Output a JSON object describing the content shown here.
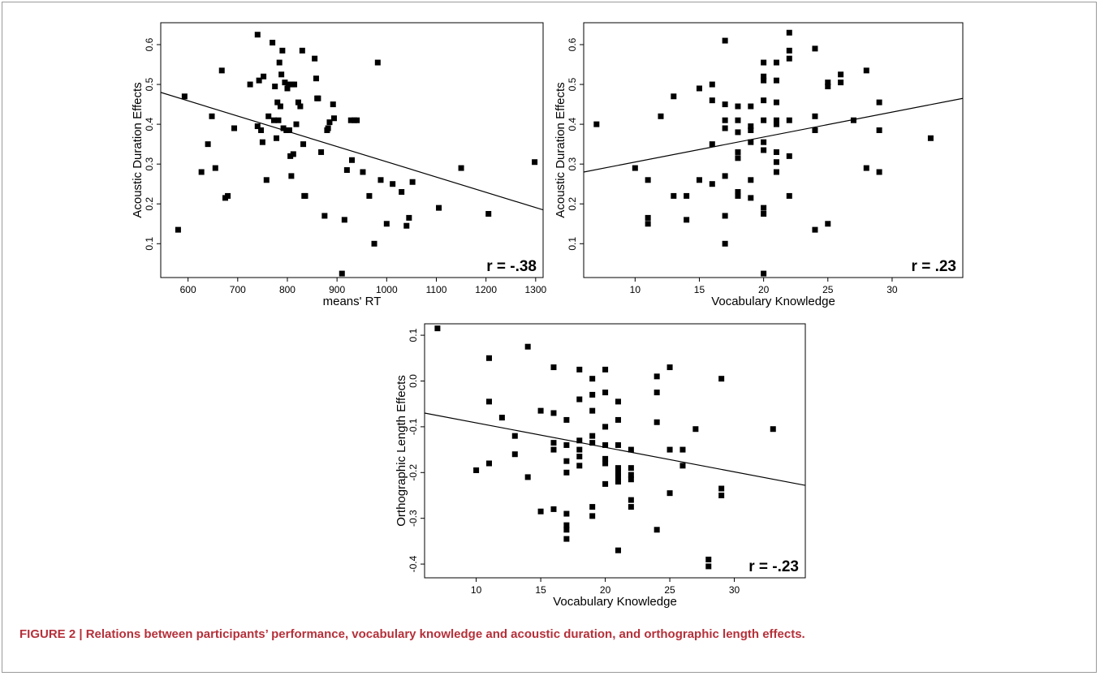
{
  "caption": "FIGURE 2 | Relations between participants’ performance, vocabulary knowledge and acoustic duration, and orthographic length effects.",
  "colors": {
    "caption": "#b5303a",
    "marker": "#000000",
    "axis": "#000000",
    "frame": "#9a9a9a"
  },
  "chart_data": [
    {
      "type": "scatter",
      "xlabel": "means' RT",
      "ylabel": "Acoustic Duration Effects",
      "annotation": "r = -.38",
      "xlim": [
        545,
        1315
      ],
      "ylim": [
        0.015,
        0.655
      ],
      "xticks": [
        600,
        700,
        800,
        900,
        1000,
        1100,
        1200,
        1300
      ],
      "yticks": [
        0.1,
        0.2,
        0.3,
        0.4,
        0.5,
        0.6
      ],
      "ytick_labels": [
        "0.1",
        "0.2",
        "0.3",
        "0.4",
        "0.5",
        "0.6"
      ],
      "fit_line": [
        [
          545,
          0.48
        ],
        [
          1315,
          0.185
        ]
      ],
      "grid": false,
      "points": [
        [
          580,
          0.135
        ],
        [
          593,
          0.47
        ],
        [
          627,
          0.28
        ],
        [
          640,
          0.35
        ],
        [
          648,
          0.42
        ],
        [
          655,
          0.29
        ],
        [
          668,
          0.535
        ],
        [
          675,
          0.215
        ],
        [
          680,
          0.22
        ],
        [
          693,
          0.39
        ],
        [
          725,
          0.5
        ],
        [
          740,
          0.625
        ],
        [
          740,
          0.395
        ],
        [
          743,
          0.51
        ],
        [
          747,
          0.385
        ],
        [
          750,
          0.355
        ],
        [
          752,
          0.52
        ],
        [
          758,
          0.26
        ],
        [
          762,
          0.42
        ],
        [
          770,
          0.605
        ],
        [
          773,
          0.41
        ],
        [
          775,
          0.495
        ],
        [
          778,
          0.365
        ],
        [
          780,
          0.455
        ],
        [
          782,
          0.41
        ],
        [
          784,
          0.555
        ],
        [
          786,
          0.445
        ],
        [
          788,
          0.525
        ],
        [
          790,
          0.585
        ],
        [
          792,
          0.39
        ],
        [
          795,
          0.505
        ],
        [
          798,
          0.385
        ],
        [
          800,
          0.49
        ],
        [
          802,
          0.5
        ],
        [
          804,
          0.385
        ],
        [
          806,
          0.32
        ],
        [
          808,
          0.27
        ],
        [
          810,
          0.5
        ],
        [
          812,
          0.325
        ],
        [
          814,
          0.5
        ],
        [
          818,
          0.4
        ],
        [
          822,
          0.455
        ],
        [
          826,
          0.445
        ],
        [
          830,
          0.585
        ],
        [
          832,
          0.35
        ],
        [
          834,
          0.22
        ],
        [
          836,
          0.22
        ],
        [
          855,
          0.565
        ],
        [
          858,
          0.515
        ],
        [
          860,
          0.465
        ],
        [
          862,
          0.465
        ],
        [
          868,
          0.33
        ],
        [
          875,
          0.17
        ],
        [
          880,
          0.385
        ],
        [
          882,
          0.39
        ],
        [
          885,
          0.405
        ],
        [
          892,
          0.45
        ],
        [
          894,
          0.415
        ],
        [
          910,
          0.025
        ],
        [
          915,
          0.16
        ],
        [
          920,
          0.285
        ],
        [
          928,
          0.41
        ],
        [
          930,
          0.31
        ],
        [
          935,
          0.41
        ],
        [
          940,
          0.41
        ],
        [
          952,
          0.28
        ],
        [
          965,
          0.22
        ],
        [
          975,
          0.1
        ],
        [
          982,
          0.555
        ],
        [
          988,
          0.26
        ],
        [
          1000,
          0.15
        ],
        [
          1012,
          0.25
        ],
        [
          1030,
          0.23
        ],
        [
          1040,
          0.145
        ],
        [
          1045,
          0.165
        ],
        [
          1052,
          0.255
        ],
        [
          1105,
          0.19
        ],
        [
          1150,
          0.29
        ],
        [
          1205,
          0.175
        ],
        [
          1298,
          0.305
        ]
      ]
    },
    {
      "type": "scatter",
      "xlabel": "Vocabulary Knowledge",
      "ylabel": "Acoustic Duration Effects",
      "annotation": "r = .23",
      "xlim": [
        6,
        35.5
      ],
      "ylim": [
        0.015,
        0.655
      ],
      "xticks": [
        10,
        15,
        20,
        25,
        30
      ],
      "yticks": [
        0.1,
        0.2,
        0.3,
        0.4,
        0.5,
        0.6
      ],
      "ytick_labels": [
        "0.1",
        "0.2",
        "0.3",
        "0.4",
        "0.5",
        "0.6"
      ],
      "fit_line": [
        [
          6,
          0.28
        ],
        [
          35.5,
          0.465
        ]
      ],
      "grid": false,
      "points": [
        [
          7,
          0.4
        ],
        [
          10,
          0.29
        ],
        [
          11,
          0.26
        ],
        [
          11,
          0.165
        ],
        [
          11,
          0.15
        ],
        [
          12,
          0.42
        ],
        [
          13,
          0.47
        ],
        [
          13,
          0.22
        ],
        [
          14,
          0.16
        ],
        [
          14,
          0.22
        ],
        [
          15,
          0.49
        ],
        [
          15,
          0.26
        ],
        [
          16,
          0.5
        ],
        [
          16,
          0.46
        ],
        [
          16,
          0.35
        ],
        [
          16,
          0.25
        ],
        [
          17,
          0.61
        ],
        [
          17,
          0.45
        ],
        [
          17,
          0.41
        ],
        [
          17,
          0.39
        ],
        [
          17,
          0.27
        ],
        [
          17,
          0.17
        ],
        [
          17,
          0.1
        ],
        [
          18,
          0.445
        ],
        [
          18,
          0.41
        ],
        [
          18,
          0.38
        ],
        [
          18,
          0.33
        ],
        [
          18,
          0.315
        ],
        [
          18,
          0.23
        ],
        [
          18,
          0.22
        ],
        [
          19,
          0.445
        ],
        [
          19,
          0.395
        ],
        [
          19,
          0.385
        ],
        [
          19,
          0.355
        ],
        [
          19,
          0.26
        ],
        [
          19,
          0.215
        ],
        [
          20,
          0.555
        ],
        [
          20,
          0.52
        ],
        [
          20,
          0.51
        ],
        [
          20,
          0.46
        ],
        [
          20,
          0.41
        ],
        [
          20,
          0.355
        ],
        [
          20,
          0.335
        ],
        [
          20,
          0.19
        ],
        [
          20,
          0.175
        ],
        [
          20,
          0.025
        ],
        [
          21,
          0.555
        ],
        [
          21,
          0.51
        ],
        [
          21,
          0.455
        ],
        [
          21,
          0.41
        ],
        [
          21,
          0.4
        ],
        [
          21,
          0.33
        ],
        [
          21,
          0.305
        ],
        [
          21,
          0.28
        ],
        [
          22,
          0.63
        ],
        [
          22,
          0.585
        ],
        [
          22,
          0.565
        ],
        [
          22,
          0.41
        ],
        [
          22,
          0.32
        ],
        [
          22,
          0.22
        ],
        [
          24,
          0.59
        ],
        [
          24,
          0.42
        ],
        [
          24,
          0.385
        ],
        [
          24,
          0.135
        ],
        [
          25,
          0.505
        ],
        [
          25,
          0.495
        ],
        [
          25,
          0.15
        ],
        [
          26,
          0.525
        ],
        [
          26,
          0.505
        ],
        [
          27,
          0.41
        ],
        [
          28,
          0.535
        ],
        [
          28,
          0.29
        ],
        [
          29,
          0.455
        ],
        [
          29,
          0.385
        ],
        [
          29,
          0.28
        ],
        [
          33,
          0.365
        ]
      ]
    },
    {
      "type": "scatter",
      "xlabel": "Vocabulary Knowledge",
      "ylabel": "Orthographic Length Effects",
      "annotation": "r = -.23",
      "xlim": [
        6,
        35.5
      ],
      "ylim": [
        -0.43,
        0.125
      ],
      "xticks": [
        10,
        15,
        20,
        25,
        30
      ],
      "yticks": [
        -0.4,
        -0.3,
        -0.2,
        -0.1,
        0.0,
        0.1
      ],
      "ytick_labels": [
        "-0.4",
        "-0.3",
        "-0.2",
        "-0.1",
        "0.0",
        "0.1"
      ],
      "fit_line": [
        [
          6,
          -0.07
        ],
        [
          35.5,
          -0.228
        ]
      ],
      "grid": false,
      "points": [
        [
          7,
          0.115
        ],
        [
          10,
          -0.195
        ],
        [
          11,
          0.05
        ],
        [
          11,
          -0.045
        ],
        [
          11,
          -0.18
        ],
        [
          12,
          -0.08
        ],
        [
          13,
          -0.12
        ],
        [
          13,
          -0.16
        ],
        [
          14,
          0.075
        ],
        [
          14,
          -0.21
        ],
        [
          15,
          -0.065
        ],
        [
          15,
          -0.285
        ],
        [
          16,
          0.03
        ],
        [
          16,
          -0.07
        ],
        [
          16,
          -0.135
        ],
        [
          16,
          -0.15
        ],
        [
          16,
          -0.28
        ],
        [
          17,
          -0.085
        ],
        [
          17,
          -0.14
        ],
        [
          17,
          -0.175
        ],
        [
          17,
          -0.2
        ],
        [
          17,
          -0.29
        ],
        [
          17,
          -0.315
        ],
        [
          17,
          -0.325
        ],
        [
          17,
          -0.345
        ],
        [
          18,
          0.025
        ],
        [
          18,
          -0.04
        ],
        [
          18,
          -0.13
        ],
        [
          18,
          -0.15
        ],
        [
          18,
          -0.165
        ],
        [
          18,
          -0.185
        ],
        [
          19,
          0.005
        ],
        [
          19,
          -0.03
        ],
        [
          19,
          -0.065
        ],
        [
          19,
          -0.12
        ],
        [
          19,
          -0.135
        ],
        [
          19,
          -0.275
        ],
        [
          19,
          -0.295
        ],
        [
          20,
          0.025
        ],
        [
          20,
          -0.025
        ],
        [
          20,
          -0.1
        ],
        [
          20,
          -0.14
        ],
        [
          20,
          -0.17
        ],
        [
          20,
          -0.18
        ],
        [
          20,
          -0.225
        ],
        [
          21,
          -0.045
        ],
        [
          21,
          -0.085
        ],
        [
          21,
          -0.14
        ],
        [
          21,
          -0.19
        ],
        [
          21,
          -0.2
        ],
        [
          21,
          -0.21
        ],
        [
          21,
          -0.22
        ],
        [
          21,
          -0.37
        ],
        [
          22,
          -0.15
        ],
        [
          22,
          -0.19
        ],
        [
          22,
          -0.205
        ],
        [
          22,
          -0.215
        ],
        [
          22,
          -0.26
        ],
        [
          22,
          -0.275
        ],
        [
          24,
          0.01
        ],
        [
          24,
          -0.025
        ],
        [
          24,
          -0.09
        ],
        [
          24,
          -0.325
        ],
        [
          25,
          0.03
        ],
        [
          25,
          -0.15
        ],
        [
          25,
          -0.245
        ],
        [
          26,
          -0.15
        ],
        [
          26,
          -0.185
        ],
        [
          27,
          -0.105
        ],
        [
          28,
          -0.39
        ],
        [
          28,
          -0.405
        ],
        [
          29,
          0.005
        ],
        [
          29,
          -0.235
        ],
        [
          29,
          -0.25
        ],
        [
          33,
          -0.105
        ]
      ]
    }
  ]
}
